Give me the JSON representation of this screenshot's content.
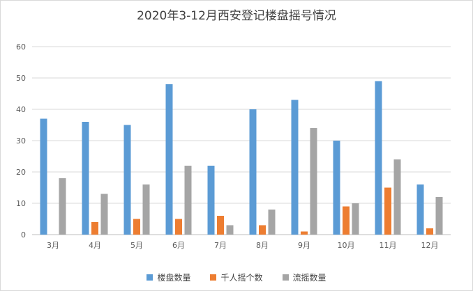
{
  "chart_data": {
    "type": "bar",
    "title": "2020年3-12月西安登记楼盘摇号情况",
    "categories": [
      "3月",
      "4月",
      "5月",
      "6月",
      "7月",
      "8月",
      "9月",
      "10月",
      "11月",
      "12月"
    ],
    "series": [
      {
        "name": "楼盘数量",
        "color": "#5B9BD5",
        "values": [
          37,
          36,
          35,
          48,
          22,
          40,
          43,
          30,
          49,
          16
        ]
      },
      {
        "name": "千人摇个数",
        "color": "#ED7D31",
        "values": [
          0,
          4,
          5,
          5,
          6,
          3,
          1,
          9,
          15,
          2
        ]
      },
      {
        "name": "流摇数量",
        "color": "#A5A5A5",
        "values": [
          18,
          13,
          16,
          22,
          3,
          8,
          34,
          10,
          24,
          12
        ]
      }
    ],
    "ylim": [
      0,
      60
    ],
    "yticks": [
      0,
      10,
      20,
      30,
      40,
      50,
      60
    ],
    "grid": true,
    "legend_position": "bottom"
  }
}
